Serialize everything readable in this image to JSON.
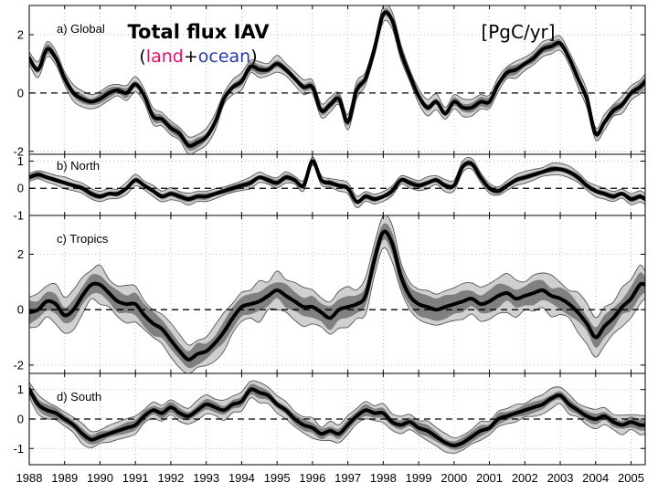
{
  "chart_data": {
    "type": "line",
    "title": "Total flux IAV",
    "subtitle_parts": [
      {
        "text": "(",
        "color": "#000000"
      },
      {
        "text": "land",
        "color": "#e0106a"
      },
      {
        "text": "+",
        "color": "#000000"
      },
      {
        "text": "ocean",
        "color": "#2a3aa8"
      },
      {
        "text": ")",
        "color": "#000000"
      }
    ],
    "units": "[PgC/yr]",
    "colors": {
      "mean_line": "#000000",
      "inner_band": "#808080",
      "outer_band": "#d0d0d0",
      "band_edge": "#555555"
    },
    "x_ticks": [
      "1988",
      "1989",
      "1990",
      "1991",
      "1992",
      "1993",
      "1994",
      "1995",
      "1996",
      "1997",
      "1998",
      "1999",
      "2000",
      "2001",
      "2002",
      "2003",
      "2004",
      "2005"
    ],
    "xlim": [
      1988,
      2005.4
    ],
    "panels": [
      {
        "label": "a) Global",
        "ylim": [
          -2.1,
          3.0
        ],
        "y_ticks": [
          -2,
          0,
          2
        ],
        "inner_spread": 0.14,
        "outer_spread": 0.24,
        "x": [
          1988.0,
          1988.25,
          1988.5,
          1988.75,
          1989.0,
          1989.25,
          1989.5,
          1989.75,
          1990.0,
          1990.25,
          1990.5,
          1990.75,
          1991.0,
          1991.25,
          1991.5,
          1991.75,
          1992.0,
          1992.25,
          1992.5,
          1992.75,
          1993.0,
          1993.25,
          1993.5,
          1993.75,
          1994.0,
          1994.25,
          1994.5,
          1994.75,
          1995.0,
          1995.25,
          1995.5,
          1995.75,
          1996.0,
          1996.25,
          1996.5,
          1996.75,
          1997.0,
          1997.25,
          1997.5,
          1997.75,
          1998.0,
          1998.25,
          1998.5,
          1998.75,
          1999.0,
          1999.25,
          1999.5,
          1999.75,
          2000.0,
          2000.25,
          2000.5,
          2000.75,
          2001.0,
          2001.25,
          2001.5,
          2001.75,
          2002.0,
          2002.25,
          2002.5,
          2002.75,
          2003.0,
          2003.25,
          2003.5,
          2003.75,
          2004.0,
          2004.25,
          2004.5,
          2004.75,
          2005.0,
          2005.25,
          2005.4
        ],
        "y": [
          1.2,
          0.8,
          1.5,
          1.2,
          0.5,
          0.0,
          -0.2,
          -0.3,
          -0.2,
          0.0,
          0.1,
          0.0,
          0.3,
          -0.1,
          -0.8,
          -0.9,
          -1.2,
          -1.4,
          -1.8,
          -1.7,
          -1.5,
          -1.0,
          -0.2,
          0.2,
          0.4,
          0.9,
          0.8,
          0.8,
          1.0,
          0.8,
          0.5,
          0.2,
          0.2,
          -0.6,
          -0.4,
          -0.2,
          -1.0,
          0.1,
          0.5,
          1.5,
          2.7,
          2.5,
          1.4,
          0.6,
          -0.1,
          -0.5,
          -0.3,
          -0.7,
          -0.3,
          -0.5,
          -0.5,
          -0.3,
          -0.3,
          0.3,
          0.7,
          0.8,
          1.0,
          1.2,
          1.5,
          1.6,
          1.7,
          1.2,
          0.5,
          -0.2,
          -1.4,
          -1.0,
          -0.6,
          -0.4,
          0.0,
          0.2,
          0.4
        ]
      },
      {
        "label": "b) North",
        "ylim": [
          -1.0,
          1.25
        ],
        "y_ticks": [
          -1,
          0,
          1
        ],
        "inner_spread": 0.1,
        "outer_spread": 0.18,
        "x": [
          1988.0,
          1988.25,
          1988.5,
          1988.75,
          1989.0,
          1989.25,
          1989.5,
          1989.75,
          1990.0,
          1990.25,
          1990.5,
          1990.75,
          1991.0,
          1991.25,
          1991.5,
          1991.75,
          1992.0,
          1992.25,
          1992.5,
          1992.75,
          1993.0,
          1993.25,
          1993.5,
          1993.75,
          1994.0,
          1994.25,
          1994.5,
          1994.75,
          1995.0,
          1995.25,
          1995.5,
          1995.75,
          1996.0,
          1996.25,
          1996.5,
          1996.75,
          1997.0,
          1997.25,
          1997.5,
          1997.75,
          1998.0,
          1998.25,
          1998.5,
          1998.75,
          1999.0,
          1999.25,
          1999.5,
          1999.75,
          2000.0,
          2000.25,
          2000.5,
          2000.75,
          2001.0,
          2001.25,
          2001.5,
          2001.75,
          2002.0,
          2002.25,
          2002.5,
          2002.75,
          2003.0,
          2003.25,
          2003.5,
          2003.75,
          2004.0,
          2004.25,
          2004.5,
          2004.75,
          2005.0,
          2005.25,
          2005.4
        ],
        "y": [
          0.4,
          0.5,
          0.4,
          0.3,
          0.2,
          0.1,
          0.0,
          -0.2,
          -0.3,
          -0.2,
          -0.2,
          0.0,
          0.3,
          0.1,
          -0.1,
          -0.3,
          -0.2,
          -0.3,
          -0.4,
          -0.3,
          -0.3,
          -0.2,
          -0.1,
          0.0,
          0.1,
          0.2,
          0.4,
          0.3,
          0.2,
          0.4,
          0.3,
          0.1,
          1.0,
          0.3,
          0.2,
          0.1,
          0.0,
          -0.5,
          -0.3,
          -0.4,
          -0.3,
          -0.1,
          0.3,
          0.2,
          0.1,
          0.2,
          0.3,
          0.1,
          0.1,
          0.8,
          0.9,
          0.4,
          0.0,
          -0.1,
          0.1,
          0.3,
          0.4,
          0.5,
          0.6,
          0.7,
          0.7,
          0.6,
          0.4,
          0.1,
          -0.1,
          -0.2,
          -0.3,
          -0.2,
          -0.4,
          -0.3,
          -0.4
        ]
      },
      {
        "label": "c) Tropics",
        "ylim": [
          -2.3,
          3.4
        ],
        "y_ticks": [
          -2,
          0,
          2
        ],
        "inner_spread": 0.35,
        "outer_spread": 0.6,
        "x": [
          1988.0,
          1988.25,
          1988.5,
          1988.75,
          1989.0,
          1989.25,
          1989.5,
          1989.75,
          1990.0,
          1990.25,
          1990.5,
          1990.75,
          1991.0,
          1991.25,
          1991.5,
          1991.75,
          1992.0,
          1992.25,
          1992.5,
          1992.75,
          1993.0,
          1993.25,
          1993.5,
          1993.75,
          1994.0,
          1994.25,
          1994.5,
          1994.75,
          1995.0,
          1995.25,
          1995.5,
          1995.75,
          1996.0,
          1996.25,
          1996.5,
          1996.75,
          1997.0,
          1997.25,
          1997.5,
          1997.75,
          1998.0,
          1998.25,
          1998.5,
          1998.75,
          1999.0,
          1999.25,
          1999.5,
          1999.75,
          2000.0,
          2000.25,
          2000.5,
          2000.75,
          2001.0,
          2001.25,
          2001.5,
          2001.75,
          2002.0,
          2002.25,
          2002.5,
          2002.75,
          2003.0,
          2003.25,
          2003.5,
          2003.75,
          2004.0,
          2004.25,
          2004.5,
          2004.75,
          2005.0,
          2005.25,
          2005.4
        ],
        "y": [
          -0.1,
          0.0,
          0.3,
          0.2,
          -0.2,
          0.0,
          0.5,
          0.9,
          0.9,
          0.6,
          0.3,
          0.2,
          0.2,
          -0.2,
          -0.5,
          -0.7,
          -1.1,
          -1.5,
          -1.8,
          -1.6,
          -1.5,
          -1.2,
          -0.8,
          -0.3,
          0.1,
          0.2,
          0.3,
          0.5,
          0.7,
          0.5,
          0.3,
          0.1,
          0.1,
          -0.1,
          -0.3,
          0.0,
          0.1,
          0.2,
          0.5,
          1.8,
          2.8,
          2.4,
          1.2,
          0.5,
          0.2,
          0.1,
          0.0,
          0.1,
          0.2,
          0.3,
          0.4,
          0.2,
          0.3,
          0.5,
          0.6,
          0.4,
          0.5,
          0.6,
          0.7,
          0.5,
          0.4,
          0.2,
          -0.1,
          -0.5,
          -1.0,
          -0.6,
          -0.3,
          0.1,
          0.4,
          0.9,
          0.9
        ]
      },
      {
        "label": "d) South",
        "ylim": [
          -1.55,
          1.55
        ],
        "y_ticks": [
          -1,
          0,
          1
        ],
        "inner_spread": 0.16,
        "outer_spread": 0.28,
        "x": [
          1988.0,
          1988.25,
          1988.5,
          1988.75,
          1989.0,
          1989.25,
          1989.5,
          1989.75,
          1990.0,
          1990.25,
          1990.5,
          1990.75,
          1991.0,
          1991.25,
          1991.5,
          1991.75,
          1992.0,
          1992.25,
          1992.5,
          1992.75,
          1993.0,
          1993.25,
          1993.5,
          1993.75,
          1994.0,
          1994.25,
          1994.5,
          1994.75,
          1995.0,
          1995.25,
          1995.5,
          1995.75,
          1996.0,
          1996.25,
          1996.5,
          1996.75,
          1997.0,
          1997.25,
          1997.5,
          1997.75,
          1998.0,
          1998.25,
          1998.5,
          1998.75,
          1999.0,
          1999.25,
          1999.5,
          1999.75,
          2000.0,
          2000.25,
          2000.5,
          2000.75,
          2001.0,
          2001.25,
          2001.5,
          2001.75,
          2002.0,
          2002.25,
          2002.5,
          2002.75,
          2003.0,
          2003.25,
          2003.5,
          2003.75,
          2004.0,
          2004.25,
          2004.5,
          2004.75,
          2005.0,
          2005.25,
          2005.4
        ],
        "y": [
          1.0,
          0.5,
          0.3,
          0.2,
          0.0,
          -0.2,
          -0.5,
          -0.7,
          -0.6,
          -0.5,
          -0.4,
          -0.3,
          -0.2,
          0.1,
          0.3,
          0.2,
          0.4,
          0.2,
          0.1,
          0.3,
          0.5,
          0.4,
          0.3,
          0.5,
          0.6,
          1.0,
          0.9,
          0.8,
          0.5,
          0.3,
          0.0,
          -0.2,
          -0.3,
          -0.5,
          -0.4,
          -0.5,
          -0.2,
          0.1,
          0.3,
          0.2,
          0.2,
          -0.1,
          -0.2,
          -0.1,
          -0.3,
          -0.4,
          -0.6,
          -0.8,
          -0.9,
          -0.8,
          -0.6,
          -0.4,
          -0.3,
          0.0,
          0.1,
          0.2,
          0.3,
          0.4,
          0.5,
          0.7,
          0.8,
          0.5,
          0.3,
          0.1,
          0.0,
          0.1,
          -0.1,
          -0.2,
          -0.1,
          -0.2,
          -0.2
        ]
      }
    ]
  }
}
